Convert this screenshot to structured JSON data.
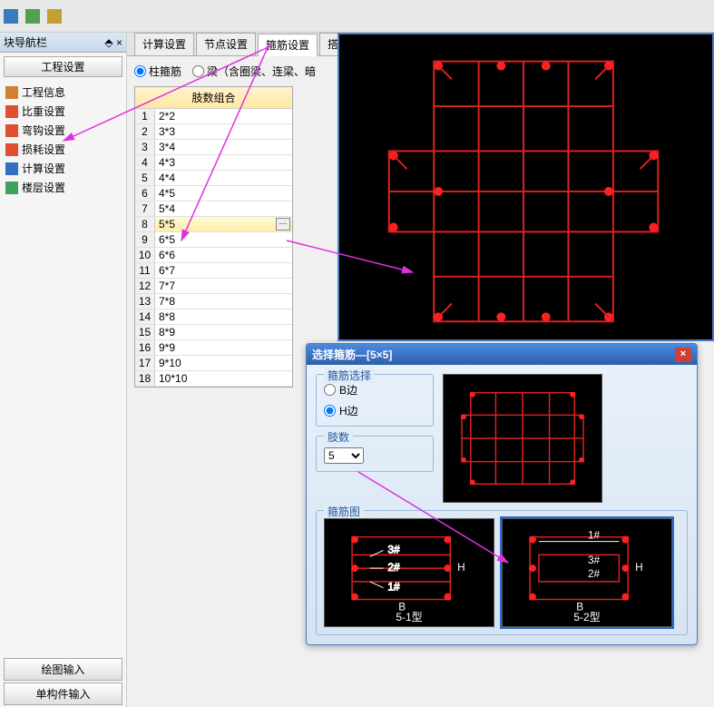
{
  "nav": {
    "header": "块导航栏",
    "title_button": "工程设置",
    "items": [
      {
        "label": "工程信息",
        "icon_color": "#d08030"
      },
      {
        "label": "比重设置",
        "icon_color": "#e05030"
      },
      {
        "label": "弯钩设置",
        "icon_color": "#e05030"
      },
      {
        "label": "损耗设置",
        "icon_color": "#e05030"
      },
      {
        "label": "计算设置",
        "icon_color": "#3070c0"
      },
      {
        "label": "楼层设置",
        "icon_color": "#40a060"
      }
    ],
    "bottom_buttons": [
      "绘图输入",
      "单构件输入"
    ]
  },
  "tabs": {
    "items": [
      "计算设置",
      "节点设置",
      "箍筋设置",
      "搭接设"
    ],
    "active_index": 2
  },
  "radio_options": {
    "opt1": "柱箍筋",
    "opt2": "梁（含圈梁、连梁、暗"
  },
  "grid": {
    "header": "肢数组合",
    "rows": [
      "2*2",
      "3*3",
      "3*4",
      "4*3",
      "4*4",
      "4*5",
      "5*4",
      "5*5",
      "6*5",
      "6*6",
      "6*7",
      "7*7",
      "7*8",
      "8*8",
      "8*9",
      "9*9",
      "9*10",
      "10*10"
    ],
    "selected_index": 7
  },
  "dialog": {
    "title": "选择箍筋—[5×5]",
    "section1_legend": "箍筋选择",
    "radio_b": "B边",
    "radio_h": "H边",
    "section2_legend": "肢数",
    "select_value": "5",
    "section3_legend": "箍筋图",
    "type_labels": [
      "5-1型",
      "5-2型"
    ],
    "axis_b": "B",
    "axis_h": "H",
    "marks_51": [
      "3#",
      "2#",
      "1#"
    ],
    "marks_52": [
      "1#",
      "3#",
      "2#"
    ]
  },
  "colors": {
    "rebar_red": "#e02020",
    "rebar_dot": "#ff2020",
    "panel_bg": "#000000",
    "dialog_blue": "#4a8ae0",
    "arrow_magenta": "#e030e0"
  }
}
